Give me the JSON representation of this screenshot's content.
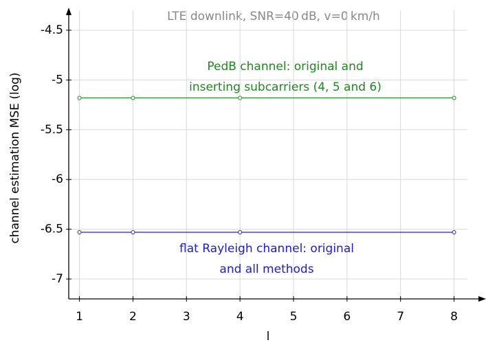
{
  "chart_data": {
    "type": "line",
    "title": "LTE downlink, SNR=40 dB, v=0 km/h",
    "x_label": "l",
    "y_label": "channel estimation MSE (log)",
    "x": [
      1,
      2,
      4,
      8
    ],
    "series": [
      {
        "name": "PedB",
        "color": "#1a8a1a",
        "values": [
          -5.18,
          -5.18,
          -5.18,
          -5.18
        ]
      },
      {
        "name": "flat Rayleigh",
        "color": "#1a1ae6",
        "values": [
          -6.53,
          -6.53,
          -6.53,
          -6.53
        ]
      }
    ],
    "annotations": [
      {
        "lines": [
          "PedB channel: original and",
          "inserting subcarriers (4, 5 and 6)"
        ],
        "color": "#1a8a1a"
      },
      {
        "lines": [
          "flat Rayleigh channel: original",
          "and all methods"
        ],
        "color": "#1a1ae6"
      }
    ],
    "xlim": [
      0.8,
      8.25
    ],
    "ylim": [
      -7.2,
      -4.3
    ],
    "xticks": [
      1,
      2,
      3,
      4,
      5,
      6,
      7,
      8
    ],
    "yticks": [
      -7.0,
      -6.5,
      -6.0,
      -5.5,
      -5.0,
      -4.5
    ],
    "grid": true
  }
}
